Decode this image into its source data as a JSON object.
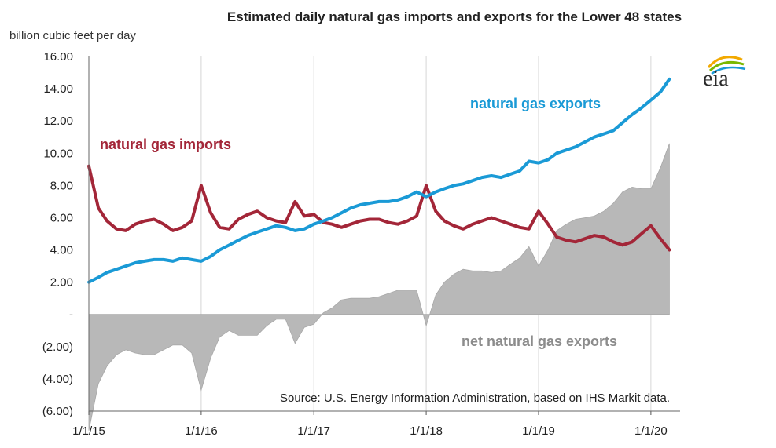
{
  "chart_data": {
    "type": "line",
    "title": "Estimated daily natural gas imports and exports for the Lower 48 states",
    "ylabel": "billion cubic feet per day",
    "ylim": [
      -6,
      16
    ],
    "y_ticks": [
      "16.00",
      "14.00",
      "12.00",
      "10.00",
      "8.00",
      "6.00",
      "4.00",
      "2.00",
      "-",
      "(2.00)",
      "(4.00)",
      "(6.00)"
    ],
    "x_ticks": [
      "1/1/15",
      "1/1/16",
      "1/1/17",
      "1/1/18",
      "1/1/19",
      "1/1/20"
    ],
    "grid": "vertical",
    "source": "Source: U.S. Energy Information Administration, based on IHS Markit data.",
    "logo_text": "eia",
    "x": [
      "2015-01-01",
      "2015-02-01",
      "2015-03-01",
      "2015-04-01",
      "2015-05-01",
      "2015-06-01",
      "2015-07-01",
      "2015-08-01",
      "2015-09-01",
      "2015-10-01",
      "2015-11-01",
      "2015-12-01",
      "2016-01-01",
      "2016-02-01",
      "2016-03-01",
      "2016-04-01",
      "2016-05-01",
      "2016-06-01",
      "2016-07-01",
      "2016-08-01",
      "2016-09-01",
      "2016-10-01",
      "2016-11-01",
      "2016-12-01",
      "2017-01-01",
      "2017-02-01",
      "2017-03-01",
      "2017-04-01",
      "2017-05-01",
      "2017-06-01",
      "2017-07-01",
      "2017-08-01",
      "2017-09-01",
      "2017-10-01",
      "2017-11-01",
      "2017-12-01",
      "2018-01-01",
      "2018-02-01",
      "2018-03-01",
      "2018-04-01",
      "2018-05-01",
      "2018-06-01",
      "2018-07-01",
      "2018-08-01",
      "2018-09-01",
      "2018-10-01",
      "2018-11-01",
      "2018-12-01",
      "2019-01-01",
      "2019-02-01",
      "2019-03-01",
      "2019-04-01",
      "2019-05-01",
      "2019-06-01",
      "2019-07-01",
      "2019-08-01",
      "2019-09-01",
      "2019-10-01",
      "2019-11-01",
      "2019-12-01",
      "2020-01-01",
      "2020-02-01",
      "2020-03-01"
    ],
    "series": [
      {
        "name": "natural gas imports",
        "color": "#a32638",
        "values": [
          9.2,
          6.6,
          5.8,
          5.3,
          5.2,
          5.6,
          5.8,
          5.9,
          5.6,
          5.2,
          5.4,
          5.8,
          8.0,
          6.3,
          5.4,
          5.3,
          5.9,
          6.2,
          6.4,
          6.0,
          5.8,
          5.7,
          7.0,
          6.1,
          6.2,
          5.7,
          5.6,
          5.4,
          5.6,
          5.8,
          5.9,
          5.9,
          5.7,
          5.6,
          5.8,
          6.1,
          8.0,
          6.4,
          5.8,
          5.5,
          5.3,
          5.6,
          5.8,
          6.0,
          5.8,
          5.6,
          5.4,
          5.3,
          6.4,
          5.6,
          4.8,
          4.6,
          4.5,
          4.7,
          4.9,
          4.8,
          4.5,
          4.3,
          4.5,
          5.0,
          5.5,
          4.7,
          4.0
        ]
      },
      {
        "name": "natural gas exports",
        "color": "#1a9ad6",
        "values": [
          2.0,
          2.3,
          2.6,
          2.8,
          3.0,
          3.2,
          3.3,
          3.4,
          3.4,
          3.3,
          3.5,
          3.4,
          3.3,
          3.6,
          4.0,
          4.3,
          4.6,
          4.9,
          5.1,
          5.3,
          5.5,
          5.4,
          5.2,
          5.3,
          5.6,
          5.8,
          6.0,
          6.3,
          6.6,
          6.8,
          6.9,
          7.0,
          7.0,
          7.1,
          7.3,
          7.6,
          7.3,
          7.6,
          7.8,
          8.0,
          8.1,
          8.3,
          8.5,
          8.6,
          8.5,
          8.7,
          8.9,
          9.5,
          9.4,
          9.6,
          10.0,
          10.2,
          10.4,
          10.7,
          11.0,
          11.2,
          11.4,
          11.9,
          12.4,
          12.8,
          13.3,
          13.8,
          14.6
        ]
      },
      {
        "name": "net natural gas exports",
        "color": "#b8b8b8",
        "values": [
          -7.2,
          -4.3,
          -3.2,
          -2.5,
          -2.2,
          -2.4,
          -2.5,
          -2.5,
          -2.2,
          -1.9,
          -1.9,
          -2.4,
          -4.7,
          -2.7,
          -1.4,
          -1.0,
          -1.3,
          -1.3,
          -1.3,
          -0.7,
          -0.3,
          -0.3,
          -1.8,
          -0.8,
          -0.6,
          0.1,
          0.4,
          0.9,
          1.0,
          1.0,
          1.0,
          1.1,
          1.3,
          1.5,
          1.5,
          1.5,
          -0.7,
          1.2,
          2.0,
          2.5,
          2.8,
          2.7,
          2.7,
          2.6,
          2.7,
          3.1,
          3.5,
          4.2,
          3.0,
          4.0,
          5.2,
          5.6,
          5.9,
          6.0,
          6.1,
          6.4,
          6.9,
          7.6,
          7.9,
          7.8,
          7.8,
          9.1,
          10.6
        ]
      }
    ]
  }
}
